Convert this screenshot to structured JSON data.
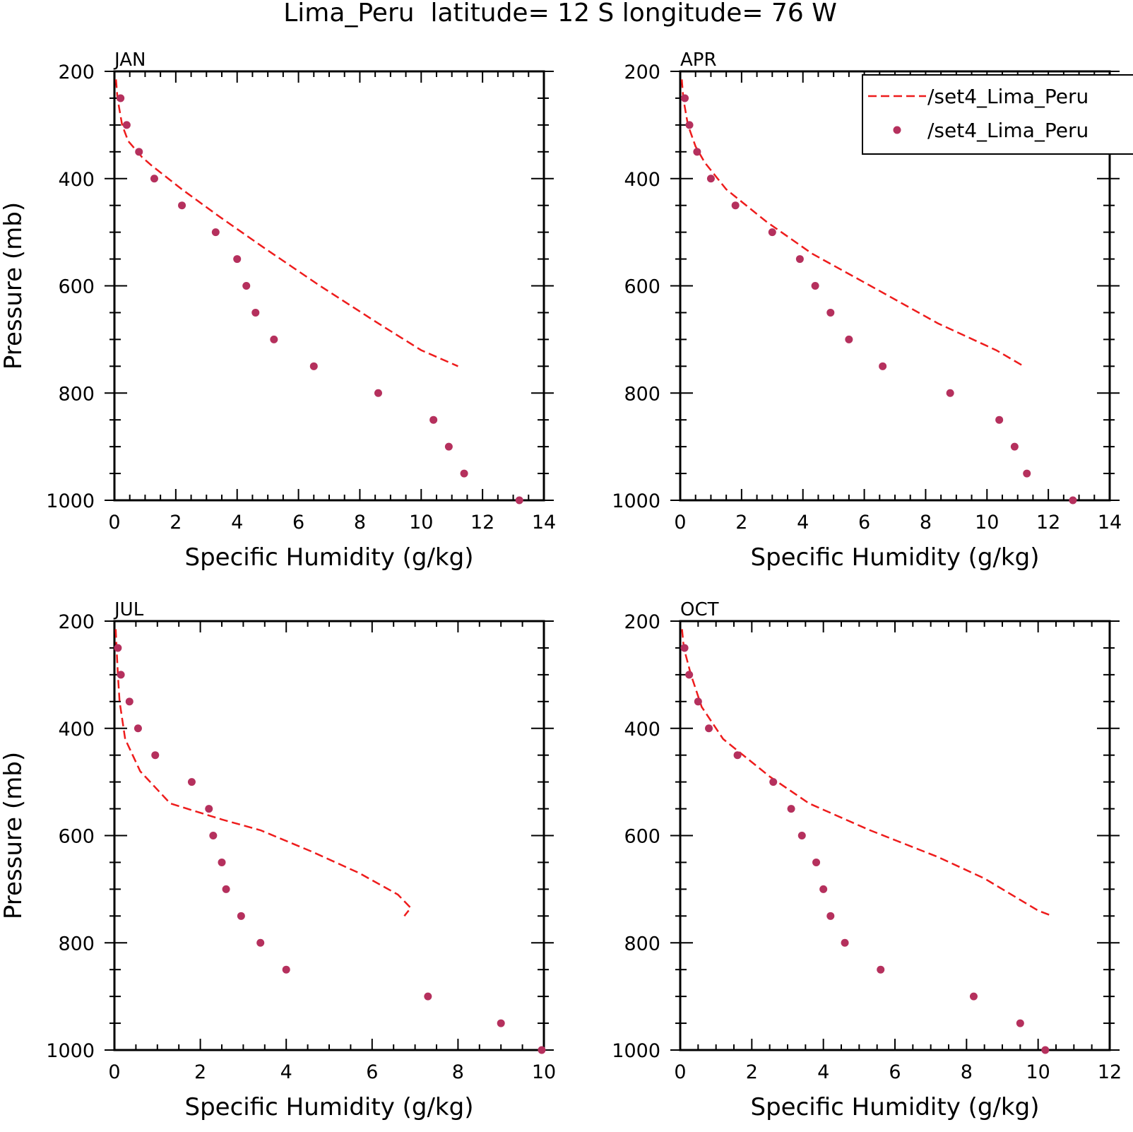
{
  "figure_title": "Lima_Peru  latitude= 12 S longitude= 76 W",
  "colors": {
    "model_line": "#ee1c1c",
    "obs_marker": "#b5305d",
    "axes": "#000000",
    "background": "#ffffff"
  },
  "legend": {
    "entries": [
      {
        "label": "/set4_Lima_Peru",
        "style": "dashed-line",
        "color": "#ee1c1c"
      },
      {
        "label": "/set4_Lima_Peru",
        "style": "marker",
        "color": "#b5305d"
      }
    ],
    "placement": "top-right"
  },
  "chart_data": [
    {
      "type": "line",
      "title": "JAN",
      "xlabel": "Specific Humidity (g/kg)",
      "ylabel": "Pressure (mb)",
      "xlim": [
        0,
        14
      ],
      "ylim": [
        1000,
        200
      ],
      "y_inverted": true,
      "xticks": [
        0,
        2,
        4,
        6,
        8,
        10,
        12,
        14
      ],
      "yticks": [
        200,
        400,
        600,
        800,
        1000
      ],
      "grid": false,
      "series": [
        {
          "name": "/set4_Lima_Peru",
          "style": "dashed-line",
          "x": [
            0.05,
            0.1,
            0.25,
            0.45,
            0.9,
            1.2,
            2.2,
            3.4,
            4.9,
            6.7,
            8.6,
            10.0,
            11.2
          ],
          "y": [
            215,
            250,
            300,
            330,
            360,
            375,
            420,
            470,
            530,
            600,
            670,
            720,
            750
          ]
        },
        {
          "name": "/set4_Lima_Peru",
          "style": "marker",
          "x": [
            0.2,
            0.4,
            0.8,
            1.3,
            2.2,
            3.3,
            4.0,
            4.3,
            4.6,
            5.2,
            6.5,
            8.6,
            10.4,
            10.9,
            11.4,
            13.2
          ],
          "y": [
            250,
            300,
            350,
            400,
            450,
            500,
            550,
            600,
            650,
            700,
            750,
            800,
            850,
            900,
            950,
            1000
          ]
        }
      ]
    },
    {
      "type": "line",
      "title": "APR",
      "xlabel": "Specific Humidity (g/kg)",
      "ylabel": "",
      "xlim": [
        0,
        14
      ],
      "ylim": [
        1000,
        200
      ],
      "y_inverted": true,
      "xticks": [
        0,
        2,
        4,
        6,
        8,
        10,
        12,
        14
      ],
      "yticks": [
        200,
        400,
        600,
        800,
        1000
      ],
      "grid": false,
      "series": [
        {
          "name": "/set4_Lima_Peru",
          "style": "dashed-line",
          "x": [
            0.05,
            0.1,
            0.25,
            0.5,
            0.8,
            1.5,
            2.8,
            4.3,
            6.2,
            8.4,
            10.3,
            11.2
          ],
          "y": [
            215,
            250,
            300,
            340,
            370,
            420,
            480,
            540,
            600,
            670,
            720,
            750
          ]
        },
        {
          "name": "/set4_Lima_Peru",
          "style": "marker",
          "x": [
            0.15,
            0.3,
            0.55,
            1.0,
            1.8,
            3.0,
            3.9,
            4.4,
            4.9,
            5.5,
            6.6,
            8.8,
            10.4,
            10.9,
            11.3,
            12.8
          ],
          "y": [
            250,
            300,
            350,
            400,
            450,
            500,
            550,
            600,
            650,
            700,
            750,
            800,
            850,
            900,
            950,
            1000
          ]
        }
      ]
    },
    {
      "type": "line",
      "title": "JUL",
      "xlabel": "Specific Humidity (g/kg)",
      "ylabel": "Pressure (mb)",
      "xlim": [
        0,
        10
      ],
      "ylim": [
        1000,
        200
      ],
      "y_inverted": true,
      "xticks": [
        0,
        2,
        4,
        6,
        8,
        10
      ],
      "yticks": [
        200,
        400,
        600,
        800,
        1000
      ],
      "grid": false,
      "series": [
        {
          "name": "/set4_Lima_Peru",
          "style": "dashed-line",
          "x": [
            0.03,
            0.05,
            0.08,
            0.12,
            0.25,
            0.6,
            1.3,
            2.5,
            3.4,
            4.6,
            5.7,
            6.6,
            6.9,
            6.8,
            6.75
          ],
          "y": [
            215,
            250,
            300,
            350,
            420,
            480,
            540,
            570,
            590,
            630,
            670,
            710,
            735,
            745,
            750
          ]
        },
        {
          "name": "/set4_Lima_Peru",
          "style": "marker",
          "x": [
            0.08,
            0.15,
            0.35,
            0.55,
            0.95,
            1.8,
            2.2,
            2.3,
            2.5,
            2.6,
            2.95,
            3.4,
            4.0,
            7.3,
            9.0,
            9.95
          ],
          "y": [
            250,
            300,
            350,
            400,
            450,
            500,
            550,
            600,
            650,
            700,
            750,
            800,
            850,
            900,
            950,
            1000
          ]
        }
      ]
    },
    {
      "type": "line",
      "title": "OCT",
      "xlabel": "Specific Humidity (g/kg)",
      "ylabel": "",
      "xlim": [
        0,
        12
      ],
      "ylim": [
        1000,
        200
      ],
      "y_inverted": true,
      "xticks": [
        0,
        2,
        4,
        6,
        8,
        10,
        12
      ],
      "yticks": [
        200,
        400,
        600,
        800,
        1000
      ],
      "grid": false,
      "series": [
        {
          "name": "/set4_Lima_Peru",
          "style": "dashed-line",
          "x": [
            0.05,
            0.1,
            0.3,
            0.6,
            1.2,
            2.5,
            3.6,
            5.3,
            7.2,
            8.5,
            10.0,
            10.4
          ],
          "y": [
            215,
            250,
            300,
            360,
            420,
            490,
            540,
            590,
            640,
            680,
            740,
            750
          ]
        },
        {
          "name": "/set4_Lima_Peru",
          "style": "marker",
          "x": [
            0.12,
            0.25,
            0.5,
            0.8,
            1.6,
            2.6,
            3.1,
            3.4,
            3.8,
            4.0,
            4.2,
            4.6,
            5.6,
            8.2,
            9.5,
            10.2
          ],
          "y": [
            250,
            300,
            350,
            400,
            450,
            500,
            550,
            600,
            650,
            700,
            750,
            800,
            850,
            900,
            950,
            1000
          ]
        }
      ]
    }
  ]
}
